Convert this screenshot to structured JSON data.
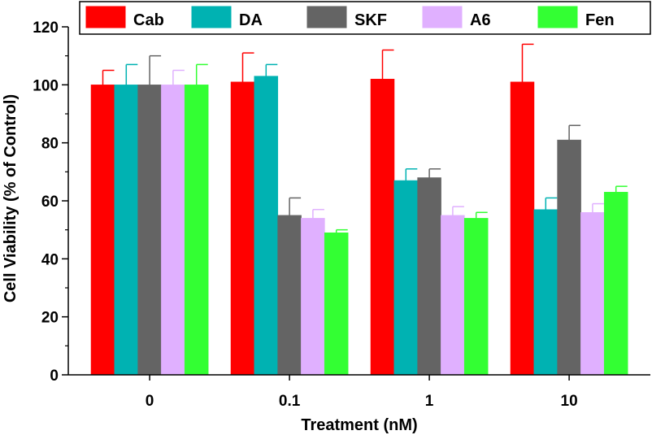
{
  "chart_data": {
    "type": "bar",
    "title": "",
    "xlabel": "Treatment (nM)",
    "ylabel": "Cell Viability (% of Control)",
    "ylim": [
      0,
      120
    ],
    "yticks": [
      "0",
      "20",
      "40",
      "60",
      "80",
      "100",
      "120"
    ],
    "categories": [
      "0",
      "0.1",
      "1",
      "10"
    ],
    "legend_position": "top",
    "series": [
      {
        "name": "Cab",
        "color": "#ff0000",
        "values": [
          100,
          101,
          102,
          101
        ],
        "errors": [
          5,
          10,
          10,
          13
        ]
      },
      {
        "name": "DA",
        "color": "#00b2b2",
        "values": [
          100,
          103,
          67,
          57
        ],
        "errors": [
          7,
          4,
          4,
          4
        ]
      },
      {
        "name": "SKF",
        "color": "#646464",
        "values": [
          100,
          55,
          68,
          81
        ],
        "errors": [
          10,
          6,
          3,
          5
        ]
      },
      {
        "name": "A6",
        "color": "#e0b0ff",
        "values": [
          100,
          54,
          55,
          56
        ],
        "errors": [
          5,
          3,
          3,
          3
        ]
      },
      {
        "name": "Fen",
        "color": "#33ff33",
        "values": [
          100,
          49,
          54,
          63
        ],
        "errors": [
          7,
          1,
          2,
          2
        ]
      }
    ]
  }
}
